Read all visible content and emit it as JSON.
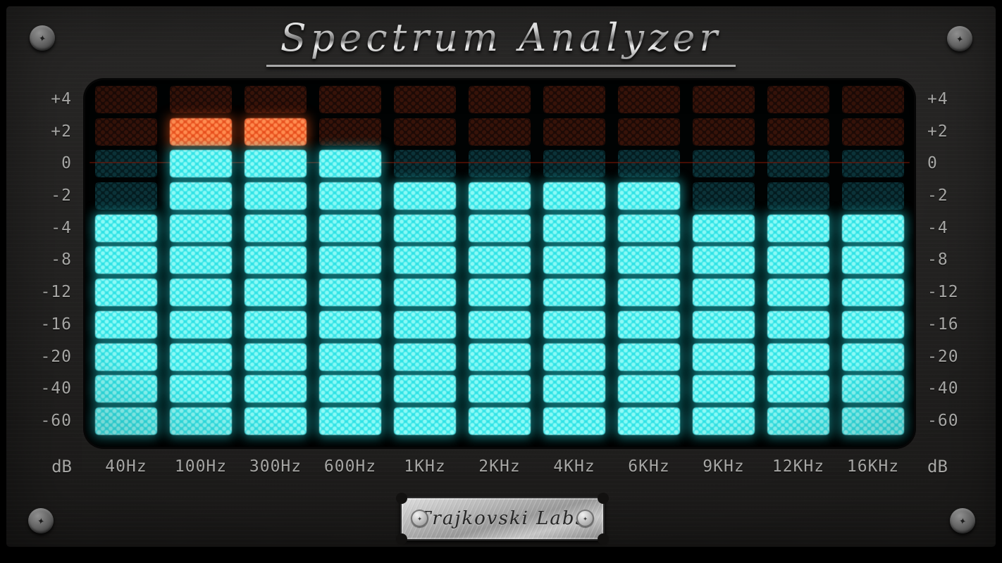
{
  "app": {
    "title": "Spectrum Analyzer",
    "brand_plate": "Trajkovski Labs"
  },
  "icons": {
    "screw_glyph": "✦"
  },
  "colors": {
    "lit_cyan": "#2fe3e6",
    "lit_cyan_light": "#8bfaf6",
    "peak_orange": "#e8501d",
    "peak_orange_light": "#ff8a4e",
    "off_red": "#1d0a06",
    "off_red_dot": "#371309",
    "off_teal": "#041c20",
    "off_teal_dot": "#0b3238",
    "label_gray": "#a6a6a4",
    "panel_bg": "#201f1e",
    "zero_line_red": "#7e1505"
  },
  "scale": {
    "unit_left": "dB",
    "unit_right": "dB",
    "rows": [
      "+4",
      "+2",
      "0",
      "-2",
      "-4",
      "-8",
      "-12",
      "-16",
      "-20",
      "-40",
      "-60"
    ]
  },
  "chart_data": {
    "type": "bar",
    "title": "Spectrum Analyzer",
    "categories": [
      "40Hz",
      "100Hz",
      "300Hz",
      "600Hz",
      "1KHz",
      "2KHz",
      "4KHz",
      "6KHz",
      "9KHz",
      "12KHz",
      "16KHz"
    ],
    "values_db": [
      -4,
      0,
      0,
      0,
      -2,
      -2,
      -2,
      -2,
      -4,
      -4,
      -4
    ],
    "peak_db": [
      null,
      2,
      2,
      null,
      null,
      null,
      null,
      null,
      null,
      null,
      null
    ],
    "ylabel": "dB",
    "y_scale_rows": [
      "+4",
      "+2",
      "0",
      "-2",
      "-4",
      "-8",
      "-12",
      "-16",
      "-20",
      "-40",
      "-60"
    ],
    "legend": "none"
  }
}
